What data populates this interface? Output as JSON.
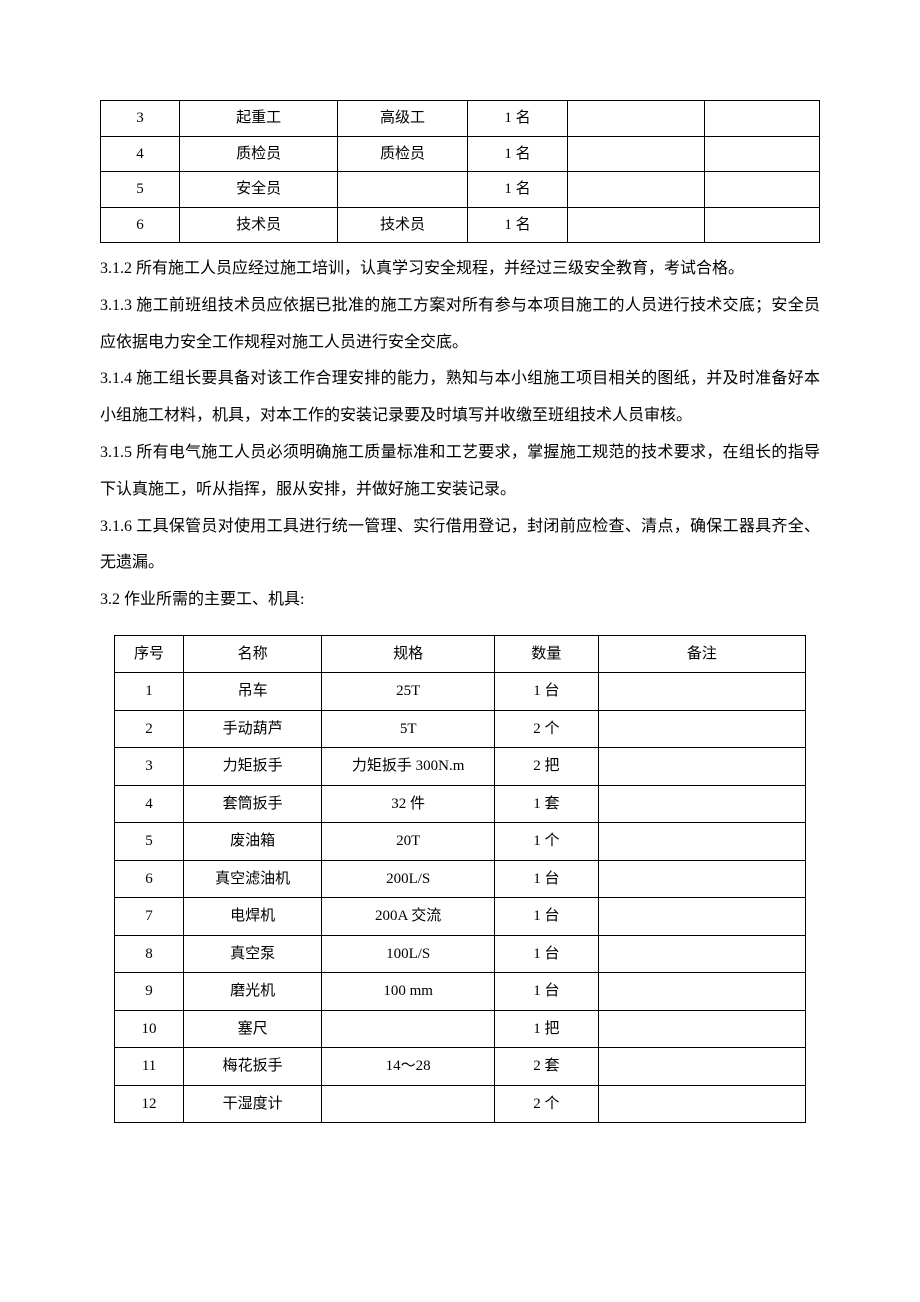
{
  "table1": {
    "rows": [
      [
        "3",
        "起重工",
        "高级工",
        "1 名",
        "",
        ""
      ],
      [
        "4",
        "质检员",
        "质检员",
        "1 名",
        "",
        ""
      ],
      [
        "5",
        "安全员",
        "",
        "1 名",
        "",
        ""
      ],
      [
        "6",
        "技术员",
        "技术员",
        "1 名",
        "",
        ""
      ]
    ]
  },
  "paragraphs": {
    "p1": "3.1.2  所有施工人员应经过施工培训，认真学习安全规程，并经过三级安全教育，考试合格。",
    "p2": "3.1.3 施工前班组技术员应依据已批准的施工方案对所有参与本项目施工的人员进行技术交底；安全员应依据电力安全工作规程对施工人员进行安全交底。",
    "p3": "3.1.4 施工组长要具备对该工作合理安排的能力，熟知与本小组施工项目相关的图纸，并及时准备好本小组施工材料，机具，对本工作的安装记录要及时填写并收缴至班组技术人员审核。",
    "p4": "3.1.5 所有电气施工人员必须明确施工质量标准和工艺要求，掌握施工规范的技术要求，在组长的指导下认真施工，听从指挥，服从安排，并做好施工安装记录。",
    "p5": "3.1.6 工具保管员对使用工具进行统一管理、实行借用登记，封闭前应检查、清点，确保工器具齐全、无遗漏。",
    "p6": "3.2 作业所需的主要工、机具:"
  },
  "table2": {
    "header": [
      "序号",
      "名称",
      "规格",
      "数量",
      "备注"
    ],
    "rows": [
      [
        "1",
        "吊车",
        "25T",
        "1 台",
        ""
      ],
      [
        "2",
        "手动葫芦",
        "5T",
        "2 个",
        ""
      ],
      [
        "3",
        "力矩扳手",
        "力矩扳手 300N.m",
        "2 把",
        ""
      ],
      [
        "4",
        "套筒扳手",
        "32 件",
        "1 套",
        ""
      ],
      [
        "5",
        "废油箱",
        "20T",
        "1 个",
        ""
      ],
      [
        "6",
        "真空滤油机",
        "200L/S",
        "1 台",
        ""
      ],
      [
        "7",
        "电焊机",
        "200A  交流",
        "1 台",
        ""
      ],
      [
        "8",
        "真空泵",
        "100L/S",
        "1 台",
        ""
      ],
      [
        "9",
        "磨光机",
        "100 mm",
        "1 台",
        ""
      ],
      [
        "10",
        "塞尺",
        "",
        "1 把",
        ""
      ],
      [
        "11",
        "梅花扳手",
        "14～28",
        "2 套",
        ""
      ],
      [
        "12",
        "干湿度计",
        "",
        "2 个",
        ""
      ]
    ]
  }
}
